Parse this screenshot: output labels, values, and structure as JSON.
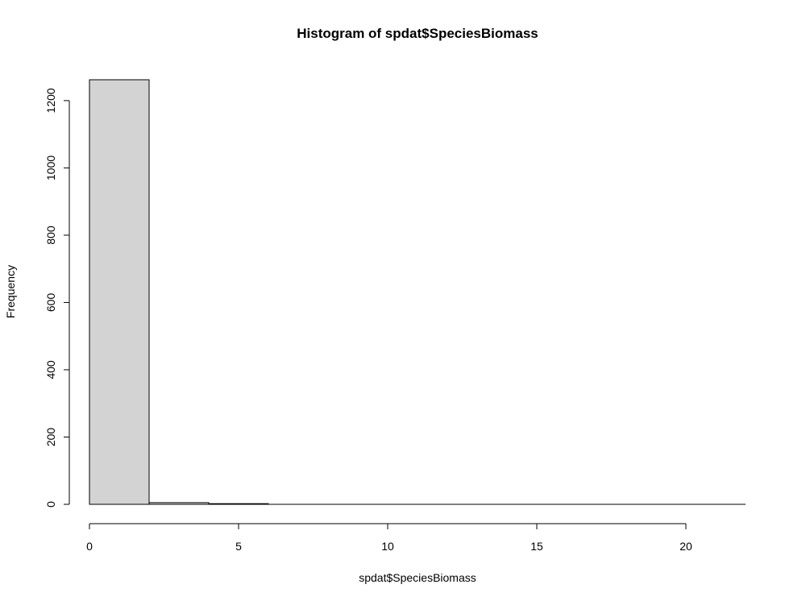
{
  "chart_data": {
    "type": "bar",
    "title": "Histogram of spdat$SpeciesBiomass",
    "xlabel": "spdat$SpeciesBiomass",
    "ylabel": "Frequency",
    "bins": [
      {
        "start": 0,
        "end": 2,
        "count": 1262
      },
      {
        "start": 2,
        "end": 4,
        "count": 5
      },
      {
        "start": 4,
        "end": 6,
        "count": 2
      },
      {
        "start": 6,
        "end": 8,
        "count": 0
      },
      {
        "start": 8,
        "end": 10,
        "count": 0
      },
      {
        "start": 10,
        "end": 12,
        "count": 0
      },
      {
        "start": 12,
        "end": 14,
        "count": 0
      },
      {
        "start": 14,
        "end": 16,
        "count": 0
      },
      {
        "start": 16,
        "end": 18,
        "count": 0
      },
      {
        "start": 18,
        "end": 20,
        "count": 0
      },
      {
        "start": 20,
        "end": 22,
        "count": 0
      }
    ],
    "xlim": [
      0,
      22
    ],
    "ylim": [
      0,
      1262
    ],
    "x_ticks": [
      0,
      5,
      10,
      15,
      20
    ],
    "y_ticks": [
      0,
      200,
      400,
      600,
      800,
      1000,
      1200
    ],
    "bar_fill": "#d3d3d3",
    "grid": false
  }
}
